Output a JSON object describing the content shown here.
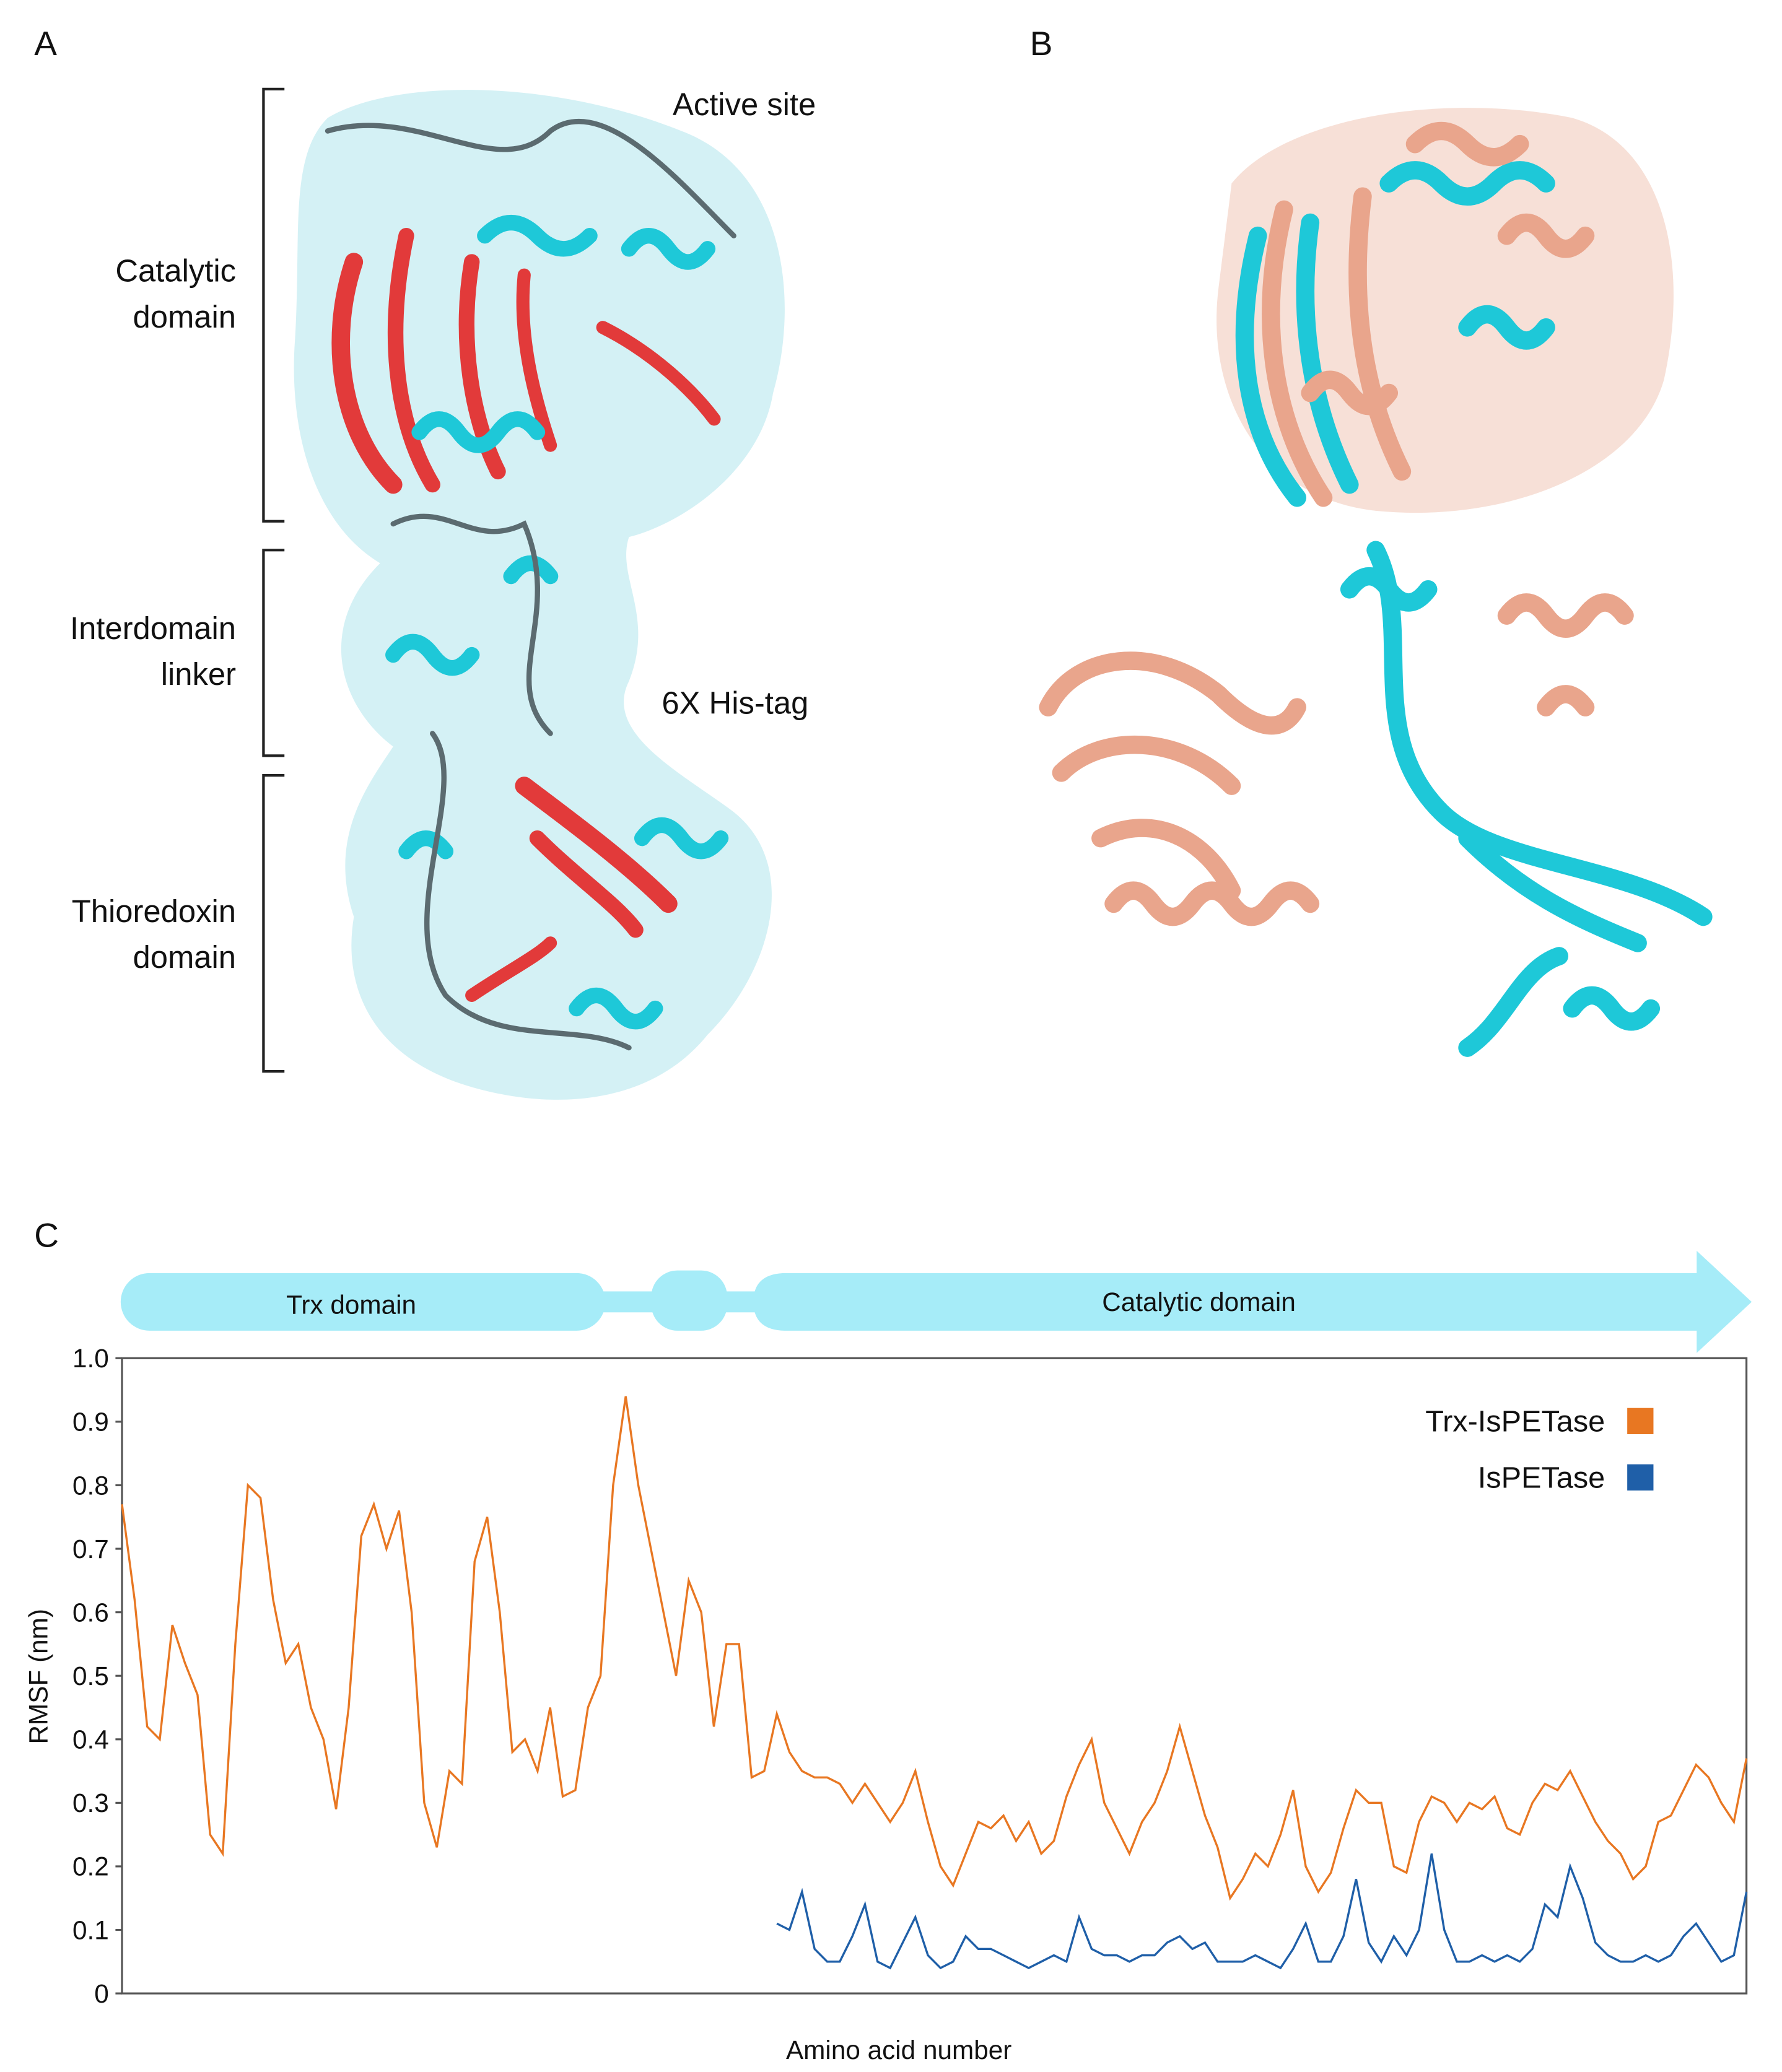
{
  "panels": {
    "A": {
      "label": "A",
      "active_site": "Active site",
      "his_tag": "6X His-tag",
      "domains": [
        {
          "lines": [
            "Catalytic",
            "domain"
          ]
        },
        {
          "lines": [
            "Interdomain",
            "linker"
          ]
        },
        {
          "lines": [
            "Thioredoxin",
            "domain"
          ]
        }
      ]
    },
    "B": {
      "label": "B"
    },
    "C": {
      "label": "C"
    }
  },
  "chart_data": {
    "type": "line",
    "domain_bar": [
      "Trx domain",
      "Catalytic domain"
    ],
    "x_label": "Amino acid number",
    "y_label": "RMSF (nm)",
    "ylim": [
      0,
      1
    ],
    "yticks": [
      0,
      0.1,
      0.2,
      0.3,
      0.4,
      0.5,
      0.6,
      0.7,
      0.8,
      0.9,
      {
        "value": 1,
        "label": "1.0"
      }
    ],
    "legend": "top-right",
    "series": [
      {
        "name": "Trx-IsPETase",
        "color": "#e87722",
        "values": [
          0.77,
          0.62,
          0.42,
          0.4,
          0.58,
          0.52,
          0.47,
          0.25,
          0.22,
          0.55,
          0.8,
          0.78,
          0.62,
          0.52,
          0.55,
          0.45,
          0.4,
          0.29,
          0.45,
          0.72,
          0.77,
          0.7,
          0.76,
          0.6,
          0.3,
          0.23,
          0.35,
          0.33,
          0.68,
          0.75,
          0.6,
          0.38,
          0.4,
          0.35,
          0.45,
          0.31,
          0.32,
          0.45,
          0.5,
          0.8,
          0.94,
          0.8,
          0.7,
          0.6,
          0.5,
          0.65,
          0.6,
          0.42,
          0.55,
          0.55,
          0.34,
          0.35,
          0.44,
          0.38,
          0.35,
          0.34,
          0.34,
          0.33,
          0.3,
          0.33,
          0.3,
          0.27,
          0.3,
          0.35,
          0.27,
          0.2,
          0.17,
          0.22,
          0.27,
          0.26,
          0.28,
          0.24,
          0.27,
          0.22,
          0.24,
          0.31,
          0.36,
          0.4,
          0.3,
          0.26,
          0.22,
          0.27,
          0.3,
          0.35,
          0.42,
          0.35,
          0.28,
          0.23,
          0.15,
          0.18,
          0.22,
          0.2,
          0.25,
          0.32,
          0.2,
          0.16,
          0.19,
          0.26,
          0.32,
          0.3,
          0.3,
          0.2,
          0.19,
          0.27,
          0.31,
          0.3,
          0.27,
          0.3,
          0.29,
          0.31,
          0.26,
          0.25,
          0.3,
          0.33,
          0.32,
          0.35,
          0.31,
          0.27,
          0.24,
          0.22,
          0.18,
          0.2,
          0.27,
          0.28,
          0.32,
          0.36,
          0.34,
          0.3,
          0.27,
          0.37
        ]
      },
      {
        "name": "IsPETase",
        "color": "#1f5fa8",
        "values": [
          null,
          null,
          null,
          null,
          null,
          null,
          null,
          null,
          null,
          null,
          null,
          null,
          null,
          null,
          null,
          null,
          null,
          null,
          null,
          null,
          null,
          null,
          null,
          null,
          null,
          null,
          null,
          null,
          null,
          null,
          null,
          null,
          null,
          null,
          null,
          null,
          null,
          null,
          null,
          null,
          null,
          null,
          null,
          null,
          null,
          null,
          null,
          null,
          null,
          null,
          null,
          null,
          0.11,
          0.1,
          0.16,
          0.07,
          0.05,
          0.05,
          0.09,
          0.14,
          0.05,
          0.04,
          0.08,
          0.12,
          0.06,
          0.04,
          0.05,
          0.09,
          0.07,
          0.07,
          0.06,
          0.05,
          0.04,
          0.05,
          0.06,
          0.05,
          0.12,
          0.07,
          0.06,
          0.06,
          0.05,
          0.06,
          0.06,
          0.08,
          0.09,
          0.07,
          0.08,
          0.05,
          0.05,
          0.05,
          0.06,
          0.05,
          0.04,
          0.07,
          0.11,
          0.05,
          0.05,
          0.09,
          0.18,
          0.08,
          0.05,
          0.09,
          0.06,
          0.1,
          0.22,
          0.1,
          0.05,
          0.05,
          0.06,
          0.05,
          0.06,
          0.05,
          0.07,
          0.14,
          0.12,
          0.2,
          0.15,
          0.08,
          0.06,
          0.05,
          0.05,
          0.06,
          0.05,
          0.06,
          0.09,
          0.11,
          0.08,
          0.05,
          0.06,
          0.16
        ]
      }
    ]
  }
}
